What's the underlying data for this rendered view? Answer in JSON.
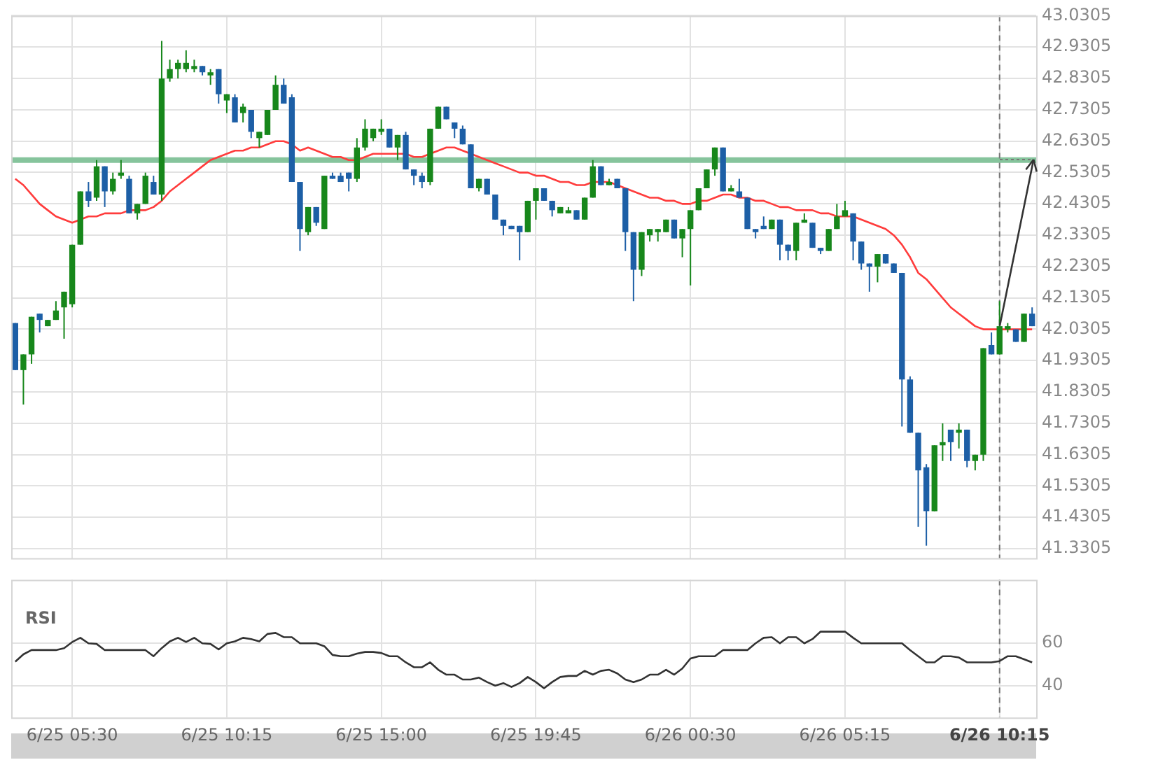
{
  "chart_data": [
    {
      "type": "candlestick",
      "categories": [
        null,
        null,
        null,
        null,
        null,
        null,
        null,
        "6/25 05:30",
        null,
        null,
        null,
        null,
        null,
        null,
        null,
        null,
        null,
        null,
        null,
        null,
        null,
        null,
        null,
        null,
        null,
        null,
        "6/25 10:15",
        null,
        null,
        null,
        null,
        null,
        null,
        null,
        null,
        null,
        null,
        null,
        null,
        null,
        null,
        null,
        null,
        null,
        null,
        "6/25 15:00",
        null,
        null,
        null,
        null,
        null,
        null,
        null,
        null,
        null,
        null,
        null,
        null,
        null,
        null,
        null,
        null,
        null,
        null,
        "6/25 19:45",
        null,
        null,
        null,
        null,
        null,
        null,
        null,
        null,
        null,
        null,
        null,
        null,
        null,
        null,
        null,
        null,
        null,
        null,
        "6/26 00:30",
        null,
        null,
        null,
        null,
        null,
        null,
        null,
        null,
        null,
        null,
        null,
        null,
        null,
        null,
        null,
        null,
        null,
        null,
        "6/26 05:15",
        null,
        null,
        null,
        null,
        null,
        null,
        null,
        null,
        null,
        null,
        null,
        null,
        null,
        null,
        null,
        null,
        null,
        null,
        "6/26 10:15",
        null,
        null,
        null,
        null
      ],
      "ohlc": [
        [
          42.05,
          42.05,
          41.9,
          41.9
        ],
        [
          41.9,
          41.95,
          41.79,
          41.95
        ],
        [
          41.95,
          42.07,
          41.92,
          42.07
        ],
        [
          42.08,
          42.08,
          42.02,
          42.06
        ],
        [
          42.04,
          42.06,
          42.04,
          42.06
        ],
        [
          42.06,
          42.12,
          42.06,
          42.09
        ],
        [
          42.1,
          42.15,
          42.0,
          42.15
        ],
        [
          42.11,
          42.3,
          42.1,
          42.3
        ],
        [
          42.3,
          42.47,
          42.3,
          42.47
        ],
        [
          42.47,
          42.5,
          42.42,
          42.44
        ],
        [
          42.45,
          42.57,
          42.44,
          42.55
        ],
        [
          42.55,
          42.55,
          42.42,
          42.47
        ],
        [
          42.47,
          42.53,
          42.46,
          42.51
        ],
        [
          42.52,
          42.57,
          42.51,
          42.53
        ],
        [
          42.51,
          42.52,
          42.4,
          42.4
        ],
        [
          42.4,
          42.43,
          42.38,
          42.43
        ],
        [
          42.43,
          42.53,
          42.43,
          42.52
        ],
        [
          42.5,
          42.52,
          42.46,
          42.46
        ],
        [
          42.46,
          42.95,
          42.44,
          42.83
        ],
        [
          42.83,
          42.89,
          42.82,
          42.86
        ],
        [
          42.86,
          42.89,
          42.83,
          42.88
        ],
        [
          42.86,
          42.92,
          42.85,
          42.88
        ],
        [
          42.86,
          42.89,
          42.85,
          42.87
        ],
        [
          42.87,
          42.87,
          42.84,
          42.85
        ],
        [
          42.84,
          42.86,
          42.81,
          42.85
        ],
        [
          42.86,
          42.86,
          42.75,
          42.78
        ],
        [
          42.76,
          42.78,
          42.72,
          42.78
        ],
        [
          42.77,
          42.78,
          42.69,
          42.69
        ],
        [
          42.72,
          42.75,
          42.69,
          42.74
        ],
        [
          42.73,
          42.73,
          42.64,
          42.66
        ],
        [
          42.64,
          42.66,
          42.61,
          42.66
        ],
        [
          42.65,
          42.73,
          42.65,
          42.73
        ],
        [
          42.73,
          42.84,
          42.73,
          42.81
        ],
        [
          42.81,
          42.83,
          42.75,
          42.75
        ],
        [
          42.77,
          42.78,
          42.5,
          42.5
        ],
        [
          42.5,
          42.5,
          42.28,
          42.35
        ],
        [
          42.34,
          42.42,
          42.33,
          42.42
        ],
        [
          42.42,
          42.42,
          42.36,
          42.37
        ],
        [
          42.35,
          42.52,
          42.35,
          42.52
        ],
        [
          42.52,
          42.53,
          42.51,
          42.51
        ],
        [
          42.52,
          42.53,
          42.5,
          42.5
        ],
        [
          42.53,
          42.53,
          42.47,
          42.51
        ],
        [
          42.51,
          42.64,
          42.5,
          42.61
        ],
        [
          42.61,
          42.7,
          42.6,
          42.67
        ],
        [
          42.64,
          42.67,
          42.63,
          42.67
        ],
        [
          42.66,
          42.7,
          42.65,
          42.67
        ],
        [
          42.67,
          42.67,
          42.61,
          42.61
        ],
        [
          42.61,
          42.65,
          42.57,
          42.65
        ],
        [
          42.65,
          42.66,
          42.54,
          42.54
        ],
        [
          42.54,
          42.54,
          42.49,
          42.52
        ],
        [
          42.52,
          42.53,
          42.48,
          42.5
        ],
        [
          42.5,
          42.67,
          42.49,
          42.67
        ],
        [
          42.67,
          42.74,
          42.67,
          42.74
        ],
        [
          42.74,
          42.74,
          42.7,
          42.7
        ],
        [
          42.69,
          42.69,
          42.64,
          42.67
        ],
        [
          42.67,
          42.68,
          42.62,
          42.62
        ],
        [
          42.62,
          42.62,
          42.48,
          42.48
        ],
        [
          42.48,
          42.51,
          42.47,
          42.51
        ],
        [
          42.51,
          42.51,
          42.46,
          42.46
        ],
        [
          42.46,
          42.46,
          42.38,
          42.38
        ],
        [
          42.38,
          42.38,
          42.33,
          42.36
        ],
        [
          42.36,
          42.36,
          42.35,
          42.35
        ],
        [
          42.36,
          42.36,
          42.25,
          42.34
        ],
        [
          42.34,
          42.44,
          42.34,
          42.44
        ],
        [
          42.44,
          42.48,
          42.38,
          42.48
        ],
        [
          42.48,
          42.48,
          42.44,
          42.44
        ],
        [
          42.44,
          42.44,
          42.39,
          42.41
        ],
        [
          42.4,
          42.42,
          42.4,
          42.42
        ],
        [
          42.4,
          42.42,
          42.4,
          42.41
        ],
        [
          42.41,
          42.41,
          42.38,
          42.38
        ],
        [
          42.38,
          42.45,
          42.38,
          42.45
        ],
        [
          42.45,
          42.57,
          42.45,
          42.55
        ],
        [
          42.55,
          42.55,
          42.49,
          42.49
        ],
        [
          42.49,
          42.51,
          42.49,
          42.5
        ],
        [
          42.51,
          42.51,
          42.48,
          42.48
        ],
        [
          42.48,
          42.48,
          42.28,
          42.34
        ],
        [
          42.34,
          42.34,
          42.12,
          42.22
        ],
        [
          42.22,
          42.34,
          42.2,
          42.34
        ],
        [
          42.33,
          42.35,
          42.31,
          42.35
        ],
        [
          42.34,
          42.35,
          42.31,
          42.35
        ],
        [
          42.34,
          42.38,
          42.34,
          42.38
        ],
        [
          42.38,
          42.38,
          42.32,
          42.32
        ],
        [
          42.32,
          42.35,
          42.26,
          42.35
        ],
        [
          42.35,
          42.41,
          42.17,
          42.41
        ],
        [
          42.41,
          42.48,
          42.41,
          42.48
        ],
        [
          42.48,
          42.54,
          42.48,
          42.54
        ],
        [
          42.54,
          42.61,
          42.52,
          42.61
        ],
        [
          42.61,
          42.61,
          42.47,
          42.47
        ],
        [
          42.47,
          42.49,
          42.47,
          42.48
        ],
        [
          42.47,
          42.51,
          42.45,
          42.45
        ],
        [
          42.45,
          42.45,
          42.35,
          42.35
        ],
        [
          42.35,
          42.35,
          42.32,
          42.34
        ],
        [
          42.36,
          42.39,
          42.35,
          42.35
        ],
        [
          42.35,
          42.38,
          42.35,
          42.38
        ],
        [
          42.38,
          42.38,
          42.25,
          42.3
        ],
        [
          42.3,
          42.3,
          42.25,
          42.28
        ],
        [
          42.28,
          42.37,
          42.25,
          42.37
        ],
        [
          42.37,
          42.4,
          42.37,
          42.38
        ],
        [
          42.37,
          42.37,
          42.29,
          42.29
        ],
        [
          42.29,
          42.29,
          42.27,
          42.28
        ],
        [
          42.28,
          42.35,
          42.28,
          42.35
        ],
        [
          42.35,
          42.43,
          42.35,
          42.39
        ],
        [
          42.39,
          42.44,
          42.39,
          42.41
        ],
        [
          42.4,
          42.4,
          42.25,
          42.31
        ],
        [
          42.31,
          42.31,
          42.22,
          42.24
        ],
        [
          42.24,
          42.24,
          42.15,
          42.23
        ],
        [
          42.23,
          42.27,
          42.18,
          42.27
        ],
        [
          42.27,
          42.27,
          42.24,
          42.24
        ],
        [
          42.24,
          42.24,
          42.21,
          42.21
        ],
        [
          42.21,
          42.21,
          41.72,
          41.87
        ],
        [
          41.87,
          41.88,
          41.7,
          41.7
        ],
        [
          41.7,
          41.7,
          41.4,
          41.58
        ],
        [
          41.59,
          41.6,
          41.34,
          41.45
        ],
        [
          41.45,
          41.66,
          41.45,
          41.66
        ],
        [
          41.66,
          41.73,
          41.61,
          41.67
        ],
        [
          41.71,
          41.71,
          41.61,
          41.67
        ],
        [
          41.7,
          41.73,
          41.65,
          41.71
        ],
        [
          41.71,
          41.71,
          41.59,
          41.61
        ],
        [
          41.61,
          41.63,
          41.58,
          41.63
        ],
        [
          41.63,
          41.97,
          41.61,
          41.97
        ],
        [
          41.98,
          42.02,
          41.95,
          41.95
        ],
        [
          41.95,
          42.12,
          41.95,
          42.04
        ],
        [
          42.03,
          42.05,
          42.02,
          42.04
        ],
        [
          42.03,
          42.03,
          41.99,
          41.99
        ],
        [
          41.99,
          42.08,
          41.99,
          42.08
        ],
        [
          42.08,
          42.1,
          42.04,
          42.04
        ]
      ],
      "colors": [
        "#1d5fa6",
        "#17871b",
        "#17871b",
        "#1d5fa6",
        "#17871b",
        "#17871b",
        "#17871b",
        "#17871b",
        "#17871b",
        "#1d5fa6",
        "#17871b",
        "#1d5fa6",
        "#17871b",
        "#17871b",
        "#1d5fa6",
        "#17871b",
        "#17871b",
        "#1d5fa6",
        "#17871b",
        "#17871b",
        "#17871b",
        "#17871b",
        "#17871b",
        "#1d5fa6",
        "#17871b",
        "#1d5fa6",
        "#17871b",
        "#1d5fa6",
        "#17871b",
        "#1d5fa6",
        "#17871b",
        "#17871b",
        "#17871b",
        "#1d5fa6",
        "#1d5fa6",
        "#1d5fa6",
        "#17871b",
        "#1d5fa6",
        "#17871b",
        "#1d5fa6",
        "#1d5fa6",
        "#1d5fa6",
        "#17871b",
        "#17871b",
        "#17871b",
        "#17871b",
        "#1d5fa6",
        "#17871b",
        "#1d5fa6",
        "#1d5fa6",
        "#1d5fa6",
        "#17871b",
        "#17871b",
        "#1d5fa6",
        "#1d5fa6",
        "#1d5fa6",
        "#1d5fa6",
        "#17871b",
        "#1d5fa6",
        "#1d5fa6",
        "#1d5fa6",
        "#1d5fa6",
        "#1d5fa6",
        "#17871b",
        "#17871b",
        "#1d5fa6",
        "#1d5fa6",
        "#17871b",
        "#17871b",
        "#1d5fa6",
        "#17871b",
        "#17871b",
        "#1d5fa6",
        "#17871b",
        "#1d5fa6",
        "#1d5fa6",
        "#1d5fa6",
        "#17871b",
        "#17871b",
        "#17871b",
        "#17871b",
        "#1d5fa6",
        "#17871b",
        "#17871b",
        "#17871b",
        "#17871b",
        "#17871b",
        "#1d5fa6",
        "#17871b",
        "#1d5fa6",
        "#1d5fa6",
        "#1d5fa6",
        "#1d5fa6",
        "#17871b",
        "#1d5fa6",
        "#1d5fa6",
        "#17871b",
        "#17871b",
        "#1d5fa6",
        "#1d5fa6",
        "#17871b",
        "#17871b",
        "#17871b",
        "#1d5fa6",
        "#1d5fa6",
        "#1d5fa6",
        "#17871b",
        "#1d5fa6",
        "#1d5fa6",
        "#1d5fa6",
        "#1d5fa6",
        "#1d5fa6",
        "#1d5fa6",
        "#17871b",
        "#17871b",
        "#1d5fa6",
        "#17871b",
        "#1d5fa6",
        "#17871b",
        "#17871b",
        "#1d5fa6",
        "#17871b",
        "#17871b",
        "#1d5fa6",
        "#17871b",
        "#1d5fa6"
      ],
      "series": [
        {
          "type": "line",
          "color": "#ff3c3c",
          "values": [
            42.51,
            42.49,
            42.46,
            42.43,
            42.41,
            42.39,
            42.38,
            42.37,
            42.38,
            42.39,
            42.39,
            42.4,
            42.4,
            42.4,
            42.41,
            42.41,
            42.41,
            42.42,
            42.44,
            42.47,
            42.49,
            42.51,
            42.53,
            42.55,
            42.57,
            42.58,
            42.59,
            42.6,
            42.6,
            42.61,
            42.61,
            42.62,
            42.63,
            42.63,
            42.62,
            42.6,
            42.61,
            42.6,
            42.59,
            42.58,
            42.58,
            42.57,
            42.57,
            42.58,
            42.59,
            42.59,
            42.59,
            42.59,
            42.59,
            42.58,
            42.58,
            42.59,
            42.6,
            42.61,
            42.61,
            42.6,
            42.59,
            42.58,
            42.57,
            42.56,
            42.55,
            42.54,
            42.53,
            42.53,
            42.52,
            42.52,
            42.51,
            42.5,
            42.5,
            42.49,
            42.49,
            42.5,
            42.5,
            42.5,
            42.49,
            42.48,
            42.47,
            42.46,
            42.45,
            42.45,
            42.44,
            42.44,
            42.43,
            42.43,
            42.44,
            42.44,
            42.45,
            42.46,
            42.46,
            42.45,
            42.45,
            42.44,
            42.44,
            42.43,
            42.42,
            42.42,
            42.41,
            42.41,
            42.41,
            42.4,
            42.4,
            42.39,
            42.39,
            42.39,
            42.38,
            42.37,
            42.36,
            42.35,
            42.33,
            42.3,
            42.26,
            42.21,
            42.19,
            42.16,
            42.13,
            42.1,
            42.08,
            42.06,
            42.04,
            42.03,
            42.03,
            42.03,
            42.03,
            42.03,
            42.03,
            42.03
          ]
        }
      ],
      "ylim": [
        41.3,
        43.0305
      ],
      "yticks": [
        41.3305,
        41.4305,
        41.5305,
        41.6305,
        41.7305,
        41.8305,
        41.9305,
        42.0305,
        42.1305,
        42.2305,
        42.3305,
        42.4305,
        42.5305,
        42.6305,
        42.7305,
        42.8305,
        42.9305,
        43.0305
      ],
      "ref_lines": [
        {
          "axis": "y",
          "value": 42.57,
          "color": "#86c49c"
        },
        {
          "axis": "x",
          "value": "6/26 10:15",
          "color": "#777777",
          "line_style": "dashed"
        }
      ],
      "grid": true,
      "marker": "none",
      "tick_labels": "y"
    },
    {
      "type": "line",
      "title": "RSI",
      "categories": [
        null,
        null,
        null,
        null,
        null,
        null,
        null,
        "6/25 05:30",
        null,
        null,
        null,
        null,
        null,
        null,
        null,
        null,
        null,
        null,
        null,
        null,
        null,
        null,
        null,
        null,
        null,
        null,
        "6/25 10:15",
        null,
        null,
        null,
        null,
        null,
        null,
        null,
        null,
        null,
        null,
        null,
        null,
        null,
        null,
        null,
        null,
        null,
        null,
        "6/25 15:00",
        null,
        null,
        null,
        null,
        null,
        null,
        null,
        null,
        null,
        null,
        null,
        null,
        null,
        null,
        null,
        null,
        null,
        null,
        "6/25 19:45",
        null,
        null,
        null,
        null,
        null,
        null,
        null,
        null,
        null,
        null,
        null,
        null,
        null,
        null,
        null,
        null,
        null,
        null,
        "6/26 00:30",
        null,
        null,
        null,
        null,
        null,
        null,
        null,
        null,
        null,
        null,
        null,
        null,
        null,
        null,
        null,
        null,
        null,
        null,
        "6/26 05:15",
        null,
        null,
        null,
        null,
        null,
        null,
        null,
        null,
        null,
        null,
        null,
        null,
        null,
        null,
        null,
        null,
        null,
        null,
        "6/26 10:15",
        null,
        null,
        null,
        null
      ],
      "series": [
        {
          "color": "#333333",
          "values": [
            51.3,
            54.8,
            56.8,
            56.8,
            56.8,
            56.8,
            57.7,
            60.6,
            62.6,
            60,
            59.7,
            56.8,
            56.8,
            56.8,
            56.8,
            56.8,
            56.8,
            53.9,
            57.7,
            60.9,
            62.6,
            60.6,
            62.6,
            60,
            59.7,
            57.1,
            60,
            60.9,
            62.6,
            62,
            60.9,
            64.4,
            64.9,
            62.9,
            62.9,
            60,
            60,
            60,
            58.6,
            54.5,
            53.9,
            53.9,
            55.1,
            55.9,
            55.9,
            55.4,
            53.9,
            53.9,
            51,
            48.7,
            48.7,
            51,
            47.5,
            45.2,
            45.2,
            42.9,
            42.9,
            43.8,
            41.7,
            40,
            41.2,
            39.4,
            41.2,
            44.1,
            41.7,
            38.8,
            41.7,
            44.1,
            44.6,
            44.6,
            47,
            45.2,
            47,
            47.5,
            45.8,
            42.9,
            41.7,
            42.9,
            45.2,
            45.2,
            47.5,
            45.2,
            48.1,
            52.8,
            53.9,
            53.9,
            53.9,
            56.8,
            56.8,
            56.8,
            56.8,
            60,
            62.6,
            62.9,
            60,
            62.9,
            62.9,
            60,
            62,
            65.5,
            65.5,
            65.5,
            65.5,
            62.6,
            60,
            60,
            60,
            60,
            60,
            60,
            56.8,
            53.9,
            51,
            51,
            53.9,
            53.9,
            53.3,
            51,
            51,
            51,
            51,
            51.6,
            53.9,
            53.9,
            52.5,
            51
          ]
        }
      ],
      "ylim": [
        25,
        90
      ],
      "yticks": [
        40,
        60
      ],
      "ref_lines": [
        {
          "axis": "x",
          "value": "6/26 10:15",
          "color": "#777777",
          "line_style": "dashed"
        }
      ],
      "grid": true,
      "marker": "none"
    }
  ]
}
